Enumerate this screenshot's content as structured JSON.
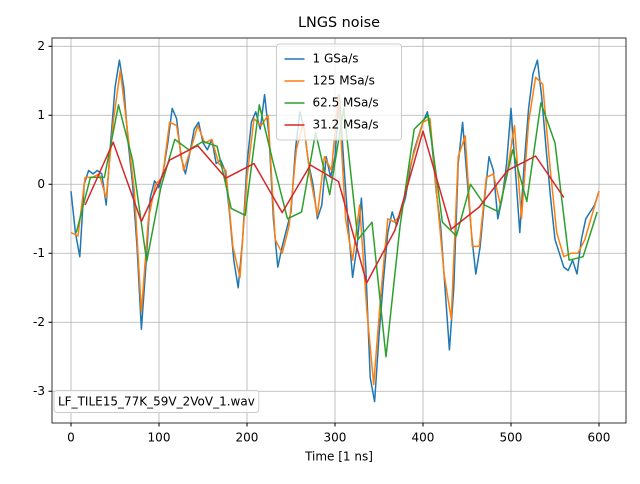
{
  "chart_data": {
    "type": "line",
    "title": "LNGS noise",
    "xlabel": "Time [1 ns]",
    "annotation": "LF_TILE15_77K_59V_2VoV_1.wav",
    "xlim": [
      -21.6,
      630.7
    ],
    "ylim": [
      -3.46,
      2.12
    ],
    "xticks": [
      0,
      100,
      200,
      300,
      400,
      500,
      600
    ],
    "yticks": [
      -3,
      -2,
      -1,
      0,
      1,
      2
    ],
    "grid": true,
    "legend": "upper center",
    "series": [
      {
        "name": "1 GSa/s",
        "color": "#1f77b4",
        "x": [
          0,
          5,
          10,
          15,
          20,
          25,
          30,
          35,
          40,
          45,
          50,
          55,
          60,
          65,
          70,
          75,
          80,
          85,
          90,
          95,
          100,
          105,
          110,
          115,
          120,
          125,
          130,
          135,
          140,
          145,
          150,
          155,
          160,
          165,
          170,
          175,
          180,
          185,
          190,
          195,
          200,
          205,
          210,
          215,
          220,
          225,
          230,
          235,
          240,
          245,
          250,
          255,
          260,
          265,
          270,
          275,
          280,
          285,
          290,
          295,
          300,
          305,
          310,
          315,
          320,
          325,
          330,
          335,
          340,
          345,
          350,
          355,
          360,
          365,
          370,
          375,
          380,
          385,
          390,
          395,
          400,
          405,
          410,
          415,
          420,
          425,
          430,
          435,
          440,
          445,
          450,
          455,
          460,
          465,
          470,
          475,
          480,
          485,
          490,
          495,
          500,
          505,
          510,
          515,
          520,
          525,
          530,
          535,
          540,
          545,
          550,
          555,
          560,
          565,
          570,
          575,
          580,
          585,
          590,
          595,
          600
        ],
        "values": [
          -0.1,
          -0.7,
          -1.05,
          0.0,
          0.2,
          0.15,
          0.2,
          0.15,
          -0.3,
          0.6,
          1.4,
          1.8,
          1.4,
          0.6,
          0.0,
          -0.9,
          -2.1,
          -1.2,
          -0.2,
          0.05,
          -0.05,
          0.2,
          0.6,
          1.1,
          0.95,
          0.4,
          0.15,
          0.45,
          0.8,
          0.9,
          0.6,
          0.5,
          0.65,
          0.3,
          0.35,
          0.2,
          -0.4,
          -1.1,
          -1.5,
          -0.8,
          0.3,
          0.9,
          1.05,
          0.8,
          1.3,
          0.7,
          -0.5,
          -1.2,
          -0.9,
          -0.65,
          -0.4,
          0.5,
          1.05,
          0.8,
          0.3,
          0.0,
          -0.5,
          -0.3,
          0.4,
          0.1,
          0.4,
          1.3,
          0.3,
          -0.6,
          -1.35,
          -0.9,
          -0.2,
          -1.2,
          -2.8,
          -3.15,
          -2.2,
          -1.4,
          -0.7,
          -0.4,
          -0.6,
          -0.4,
          -0.2,
          0.2,
          0.5,
          0.7,
          0.9,
          1.05,
          0.6,
          -0.1,
          -0.6,
          -1.5,
          -2.4,
          -1.5,
          0.3,
          0.9,
          0.1,
          -0.7,
          -1.3,
          -0.9,
          -0.2,
          0.4,
          0.2,
          -0.5,
          -0.2,
          0.3,
          1.1,
          0.2,
          -0.7,
          0.3,
          1.1,
          1.6,
          1.8,
          1.25,
          0.5,
          -0.2,
          -0.8,
          -1.0,
          -1.2,
          -1.25,
          -1.1,
          -1.3,
          -0.8,
          -0.5,
          -0.4,
          -0.3,
          -0.1
        ]
      },
      {
        "name": "125 MSa/s",
        "color": "#ff7f0e",
        "x": [
          0,
          8,
          16,
          24,
          32,
          40,
          48,
          56,
          64,
          72,
          80,
          88,
          96,
          104,
          112,
          120,
          128,
          136,
          144,
          152,
          160,
          168,
          176,
          184,
          192,
          200,
          208,
          216,
          224,
          232,
          240,
          248,
          256,
          264,
          272,
          280,
          288,
          296,
          304,
          312,
          320,
          328,
          336,
          344,
          352,
          360,
          368,
          376,
          384,
          392,
          400,
          408,
          416,
          424,
          432,
          440,
          448,
          456,
          464,
          472,
          480,
          488,
          496,
          504,
          512,
          520,
          528,
          536,
          544,
          552,
          560,
          568,
          576,
          584,
          592,
          600
        ],
        "values": [
          -0.7,
          -0.75,
          0.1,
          0.1,
          0.15,
          -0.2,
          0.9,
          1.65,
          0.8,
          -0.1,
          -1.85,
          -0.5,
          0.0,
          0.1,
          0.9,
          0.85,
          0.2,
          0.5,
          0.85,
          0.6,
          0.65,
          0.3,
          0.2,
          -0.9,
          -1.35,
          0.1,
          0.95,
          0.85,
          1.0,
          -0.8,
          -1.0,
          -0.6,
          0.5,
          0.9,
          0.1,
          -0.45,
          0.4,
          0.2,
          1.3,
          -0.5,
          -1.1,
          -0.3,
          -1.8,
          -2.9,
          -1.6,
          -0.5,
          -0.55,
          -0.4,
          0.2,
          0.55,
          0.9,
          0.95,
          -0.2,
          -1.3,
          -1.95,
          0.4,
          0.7,
          -0.9,
          -0.9,
          0.1,
          0.15,
          -0.3,
          0.2,
          0.85,
          -0.5,
          0.9,
          1.55,
          1.45,
          0.3,
          -0.7,
          -1.05,
          -1.0,
          -1.0,
          -0.8,
          -0.45,
          -0.1
        ]
      },
      {
        "name": "62.5 MSa/s",
        "color": "#2ca02c",
        "x": [
          6,
          22,
          38,
          54,
          70,
          86,
          102,
          118,
          134,
          150,
          166,
          182,
          198,
          214,
          230,
          246,
          262,
          278,
          294,
          310,
          326,
          342,
          358,
          374,
          390,
          406,
          422,
          438,
          454,
          470,
          486,
          502,
          518,
          534,
          550,
          566,
          582,
          598
        ],
        "values": [
          -0.7,
          0.1,
          0.1,
          1.15,
          0.35,
          -1.12,
          -0.05,
          0.65,
          0.5,
          0.62,
          0.55,
          -0.35,
          -0.45,
          1.15,
          0.3,
          -0.5,
          -0.4,
          0.75,
          -0.15,
          1.1,
          -0.8,
          -0.55,
          -2.5,
          -0.6,
          0.8,
          1.0,
          -0.55,
          -0.75,
          0.0,
          -0.3,
          -0.4,
          0.5,
          -0.25,
          1.18,
          0.6,
          -1.1,
          -1.05,
          -0.4
        ]
      },
      {
        "name": "31.2 MSa/s",
        "color": "#d62728",
        "x": [
          16,
          48,
          80,
          112,
          144,
          176,
          208,
          240,
          272,
          304,
          336,
          368,
          400,
          432,
          464,
          496,
          528,
          560
        ],
        "values": [
          -0.3,
          0.61,
          -0.54,
          0.35,
          0.56,
          0.09,
          0.3,
          -0.41,
          0.28,
          0.04,
          -1.43,
          -0.67,
          0.77,
          -0.65,
          -0.33,
          0.2,
          0.41,
          -0.19
        ]
      }
    ]
  }
}
